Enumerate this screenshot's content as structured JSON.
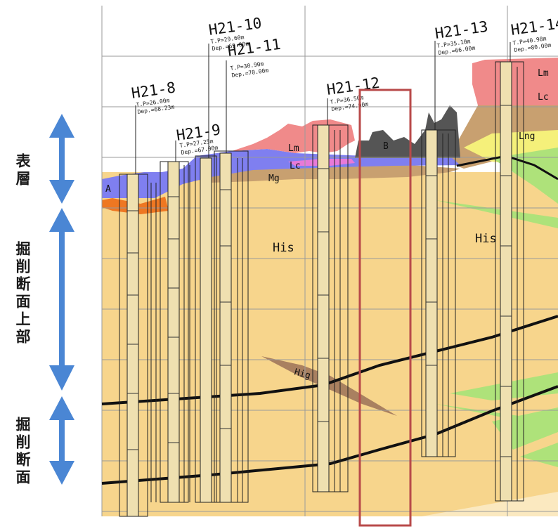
{
  "side_labels": {
    "surface": "表層",
    "upper": "掘削断面上部",
    "section": "掘削断面"
  },
  "boreholes": [
    {
      "name": "H21-8",
      "tp": "T.P=26.00m",
      "dep": "Dep.=68.23m"
    },
    {
      "name": "H21-9",
      "tp": "T.P=27.25m",
      "dep": "Dep.=67.00m"
    },
    {
      "name": "H21-10",
      "tp": "T.P=29.60m",
      "dep": "Dep.=69.00m"
    },
    {
      "name": "H21-11",
      "tp": "T.P=30.90m",
      "dep": "Dep.=70.00m"
    },
    {
      "name": "H21-12",
      "tp": "T.P=36.50m",
      "dep": "Dep.=74.00m"
    },
    {
      "name": "H21-13",
      "tp": "T.P=35.10m",
      "dep": "Dep.=66.00m"
    },
    {
      "name": "H21-14",
      "tp": "T.P=40.98m",
      "dep": "Dep.=80.00m"
    }
  ],
  "layers": {
    "A": "A",
    "Lm": "Lm",
    "Lc": "Lc",
    "Mg": "Mg",
    "His": "His",
    "His2": "His",
    "Hig": "Hig",
    "B": "B",
    "Lng": "Lng",
    "Lm2": "Lm",
    "Lc2": "Lc"
  },
  "colors": {
    "his": "#f7d58c",
    "lm": "#f08a8a",
    "lc": "#8080ee",
    "mg": "#c8a070",
    "a_orange": "#ee7722",
    "b_dark": "#555555",
    "green": "#aee27a",
    "yellow": "#f5f07a",
    "arrow": "#4a86d4",
    "highlight": "#b84a4a"
  }
}
